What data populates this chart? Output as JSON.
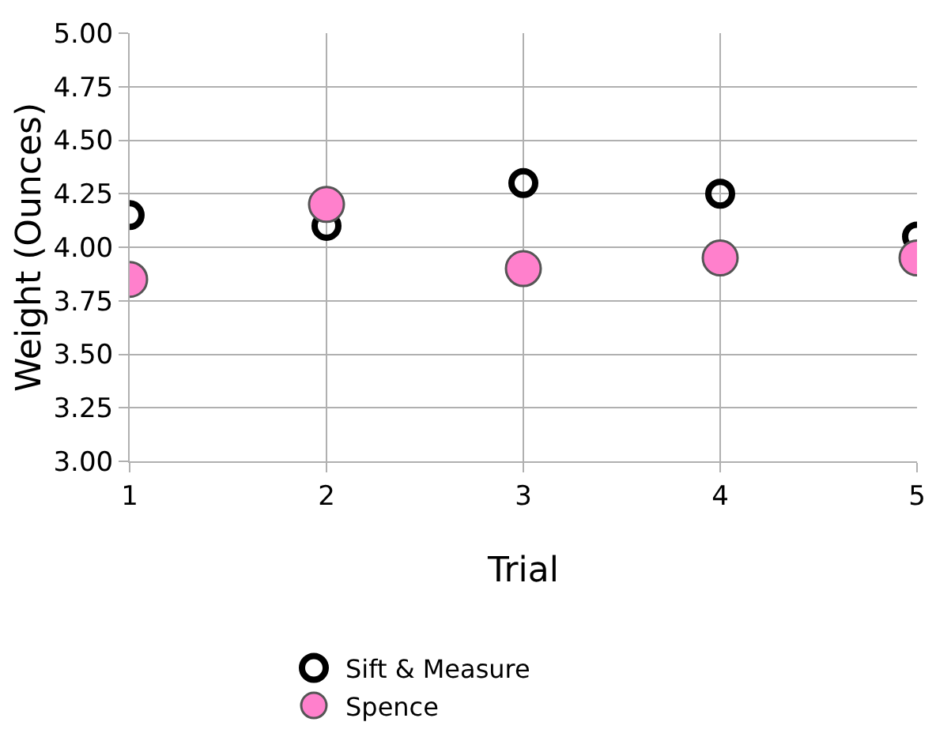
{
  "chart_data": {
    "type": "scatter",
    "xlabel": "Trial",
    "ylabel": "Weight (Ounces)",
    "x": [
      1,
      2,
      3,
      4,
      5
    ],
    "series": [
      {
        "name": "Sift & Measure",
        "color": "#000000",
        "marker": "circle-open",
        "values": [
          4.15,
          4.1,
          4.3,
          4.25,
          4.05
        ]
      },
      {
        "name": "Spence",
        "color": "#ff80cc",
        "marker": "circle",
        "values": [
          3.85,
          4.2,
          3.9,
          3.95,
          3.95
        ]
      }
    ],
    "xlim": [
      1,
      5
    ],
    "xticks": [
      1,
      2,
      3,
      4,
      5
    ],
    "ylim": [
      3.0,
      5.0
    ],
    "yticks": [
      {
        "value": 3.0,
        "label": "3.00"
      },
      {
        "value": 3.25,
        "label": "3.25"
      },
      {
        "value": 3.5,
        "label": "3.50"
      },
      {
        "value": 3.75,
        "label": "3.75"
      },
      {
        "value": 4.0,
        "label": "4.00"
      },
      {
        "value": 4.25,
        "label": "4.25"
      },
      {
        "value": 4.5,
        "label": "4.50"
      },
      {
        "value": 4.75,
        "label": "4.75"
      },
      {
        "value": 5.0,
        "label": "5.00"
      }
    ],
    "grid": true,
    "legend": "bottom"
  }
}
